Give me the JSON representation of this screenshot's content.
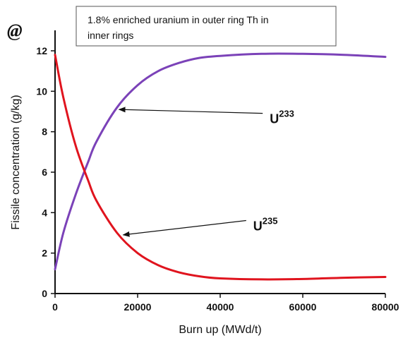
{
  "panel_label": "@",
  "note": {
    "line1": "1.8% enriched uranium in outer ring Th in",
    "line2": "inner rings"
  },
  "chart_data": {
    "type": "line",
    "xlabel": "Burn up (MWd/t)",
    "ylabel": "Fissile concentration (g/kg)",
    "xlim": [
      0,
      80000
    ],
    "ylim": [
      0,
      12
    ],
    "x_ticks": [
      0,
      20000,
      40000,
      60000,
      80000
    ],
    "y_ticks": [
      0,
      2,
      4,
      6,
      8,
      10,
      12
    ],
    "grid": false,
    "legend": "none",
    "series": [
      {
        "label_main": "U",
        "label_sup": "233",
        "color": "#7b42b8",
        "x": [
          0,
          2000,
          5000,
          8000,
          10000,
          15000,
          20000,
          25000,
          30000,
          35000,
          40000,
          50000,
          60000,
          70000,
          80000
        ],
        "y": [
          1.2,
          3.0,
          4.9,
          6.5,
          7.5,
          9.2,
          10.3,
          11.0,
          11.4,
          11.65,
          11.75,
          11.85,
          11.85,
          11.8,
          11.7
        ]
      },
      {
        "label_main": "U",
        "label_sup": "235",
        "color": "#e0141e",
        "x": [
          0,
          2000,
          5000,
          8000,
          10000,
          15000,
          20000,
          25000,
          30000,
          35000,
          40000,
          50000,
          60000,
          70000,
          80000
        ],
        "y": [
          11.8,
          9.7,
          7.3,
          5.6,
          4.6,
          3.0,
          2.0,
          1.4,
          1.05,
          0.85,
          0.75,
          0.7,
          0.72,
          0.78,
          0.82
        ]
      }
    ],
    "annotations": [
      {
        "series": 0,
        "label_x": 52000,
        "label_y": 8.7,
        "arrow_tip_x": 15500,
        "arrow_tip_y": 9.1
      },
      {
        "series": 1,
        "label_x": 48000,
        "label_y": 3.4,
        "arrow_tip_x": 16500,
        "arrow_tip_y": 2.9
      }
    ]
  }
}
